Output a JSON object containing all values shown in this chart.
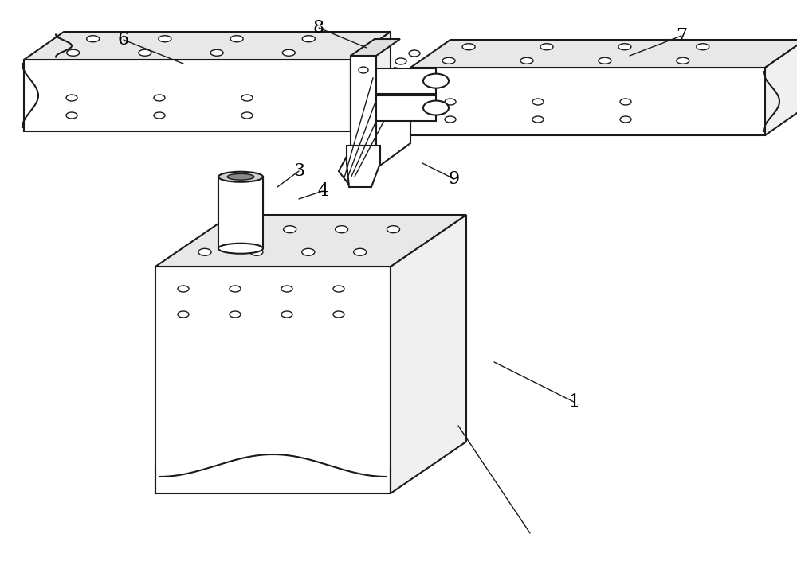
{
  "bg_color": "#ffffff",
  "line_color": "#1a1a1a",
  "label_color": "#000000",
  "lw": 1.5,
  "lw_thin": 1.0,
  "fig_width": 10.0,
  "fig_height": 7.15,
  "dpi": 100
}
